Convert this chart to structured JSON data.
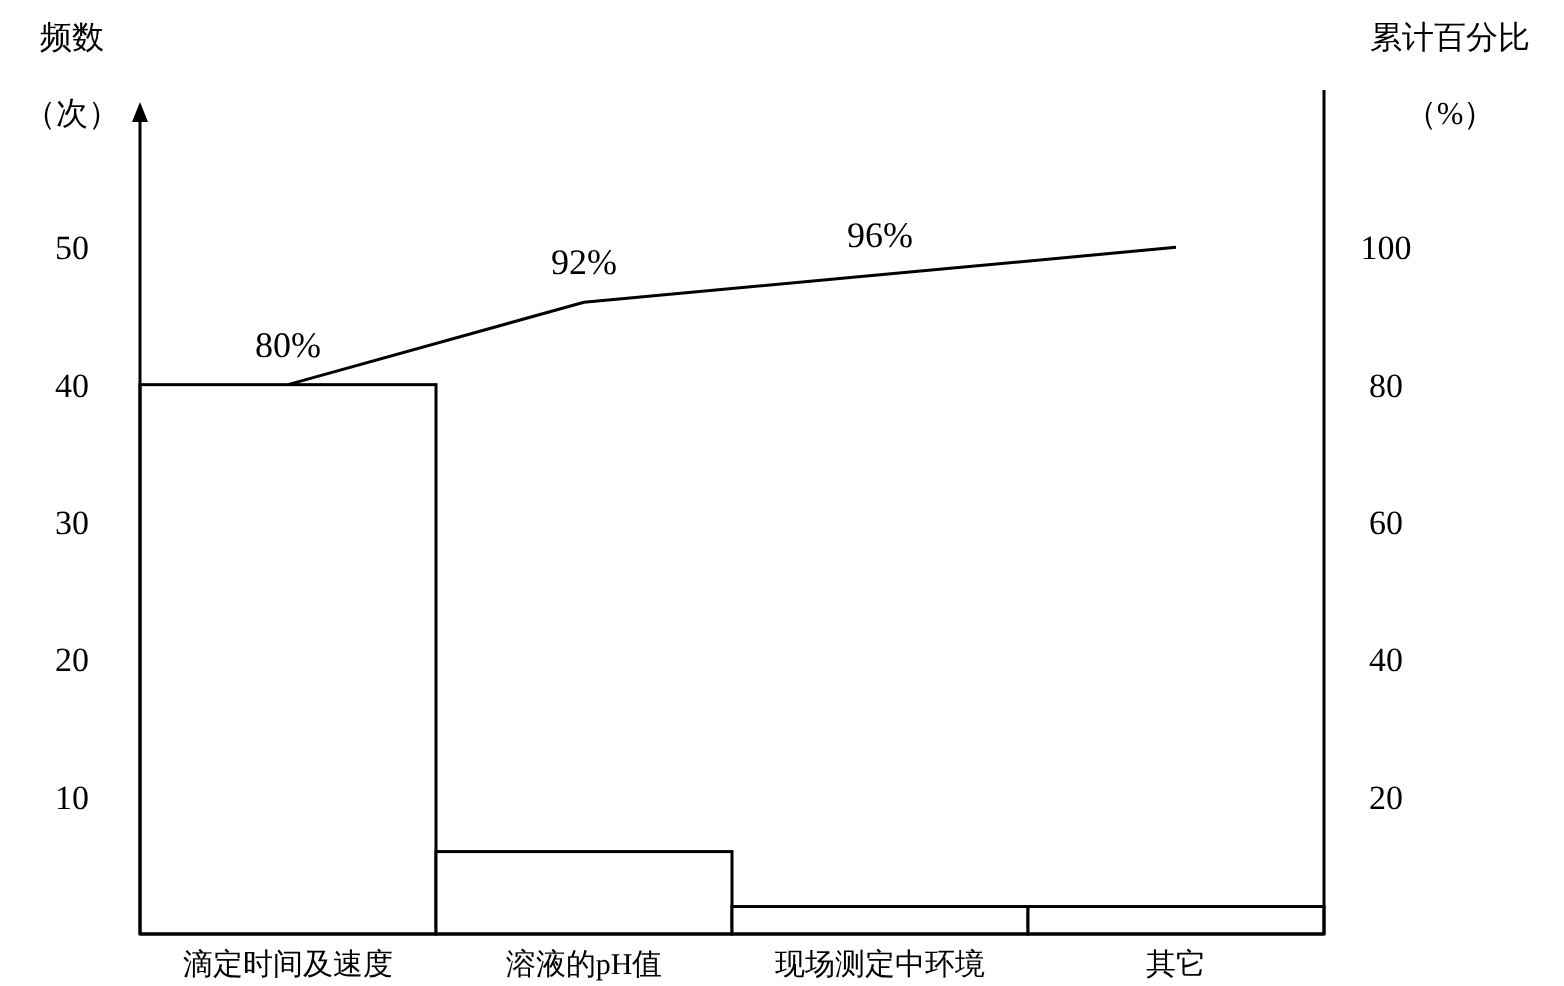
{
  "chart_data": {
    "type": "bar",
    "xlabel": null,
    "ylabel": "频数（次）",
    "y2label": "累计百分比（%）",
    "categories": [
      "滴定时间及速度",
      "溶液的pH值",
      "现场测定中环境",
      "其它"
    ],
    "series": [
      {
        "color": "#ffffff",
        "values": [
          40,
          6,
          2,
          2
        ]
      },
      {
        "type": "line",
        "axis": "y2",
        "color": "#000000",
        "values": [
          80,
          92,
          96,
          100
        ],
        "value_labels": [
          "80%",
          "92%",
          "96%",
          null
        ]
      }
    ],
    "ylim": [
      0,
      60
    ],
    "yticks": [
      10,
      20,
      30,
      40,
      50
    ],
    "y2lim": [
      0,
      120
    ],
    "y2ticks": [
      20,
      40,
      60,
      80,
      100
    ],
    "grid": false,
    "marker": "none",
    "line_style": "solid"
  }
}
